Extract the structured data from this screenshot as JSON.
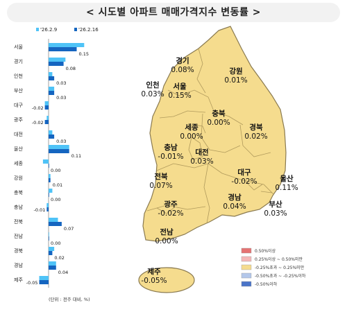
{
  "title": "< 시도별 아파트 매매가격지수 변동률 >",
  "unit_note": "(단위 : 전주 대비, %)",
  "colors": {
    "prev_week": "#4fc3f7",
    "this_week": "#1565c0",
    "region_fill": "#f5dc8e",
    "region_stroke": "#8a7a50"
  },
  "chart_data": {
    "type": "bar",
    "orientation": "horizontal",
    "categories": [
      "서울",
      "경기",
      "인천",
      "부산",
      "대구",
      "광주",
      "대전",
      "울산",
      "세종",
      "강원",
      "충북",
      "충남",
      "전북",
      "전남",
      "경북",
      "경남",
      "제주"
    ],
    "series": [
      {
        "name": "'26.2.9",
        "values": [
          0.19,
          0.09,
          0.02,
          0.03,
          -0.02,
          -0.01,
          0.02,
          0.11,
          -0.03,
          0.01,
          0.02,
          -0.01,
          0.05,
          0.0,
          0.03,
          0.04,
          -0.05
        ]
      },
      {
        "name": "'26.2.16",
        "values": [
          0.15,
          0.08,
          0.03,
          0.03,
          -0.02,
          -0.02,
          0.03,
          0.11,
          0.0,
          0.01,
          0.0,
          -0.01,
          0.07,
          0.0,
          0.02,
          0.04,
          -0.05
        ]
      }
    ],
    "value_labels": [
      "0.15",
      "0.08",
      "0.03",
      "0.03",
      "-0.02",
      "-0.02",
      "0.03",
      "0.11",
      "0.00",
      "0.01",
      "0.00",
      "-0.01",
      "0.07",
      "0.00",
      "0.02",
      "0.04",
      "-0.05"
    ],
    "xlim": [
      -0.05,
      0.2
    ]
  },
  "map": {
    "regions": [
      {
        "key": "gyeonggi",
        "name": "경기",
        "value": "0.08%"
      },
      {
        "key": "gangwon",
        "name": "강원",
        "value": "0.01%"
      },
      {
        "key": "incheon",
        "name": "인천",
        "value": "0.03%"
      },
      {
        "key": "seoul",
        "name": "서울",
        "value": "0.15%"
      },
      {
        "key": "chungbuk",
        "name": "충북",
        "value": "0.00%"
      },
      {
        "key": "sejong",
        "name": "세종",
        "value": "0.00%"
      },
      {
        "key": "gyeongbuk",
        "name": "경북",
        "value": "0.02%"
      },
      {
        "key": "chungnam",
        "name": "충남",
        "value": "-0.01%"
      },
      {
        "key": "daejeon",
        "name": "대전",
        "value": "0.03%"
      },
      {
        "key": "daegu",
        "name": "대구",
        "value": "-0.02%"
      },
      {
        "key": "ulsan",
        "name": "울산",
        "value": "0.11%"
      },
      {
        "key": "jeonbuk",
        "name": "전북",
        "value": "0.07%"
      },
      {
        "key": "gyeongnam",
        "name": "경남",
        "value": "0.04%"
      },
      {
        "key": "busan",
        "name": "부산",
        "value": "0.03%"
      },
      {
        "key": "gwangju",
        "name": "광주",
        "value": "-0.02%"
      },
      {
        "key": "jeonnam",
        "name": "전남",
        "value": "0.00%"
      },
      {
        "key": "jeju",
        "name": "제주",
        "value": "-0.05%"
      }
    ],
    "legend": [
      {
        "label": "0.50%이상",
        "color": "#e57373"
      },
      {
        "label": "0.25%이상 ~ 0.50%미만",
        "color": "#f4b8b8"
      },
      {
        "label": "-0.25%초과 ~ 0.25%미만",
        "color": "#f5dc8e"
      },
      {
        "label": "-0.50%초과 ~ -0.25%이하",
        "color": "#b3c7ea"
      },
      {
        "label": "-0.50%이하",
        "color": "#4a74c9"
      }
    ]
  }
}
